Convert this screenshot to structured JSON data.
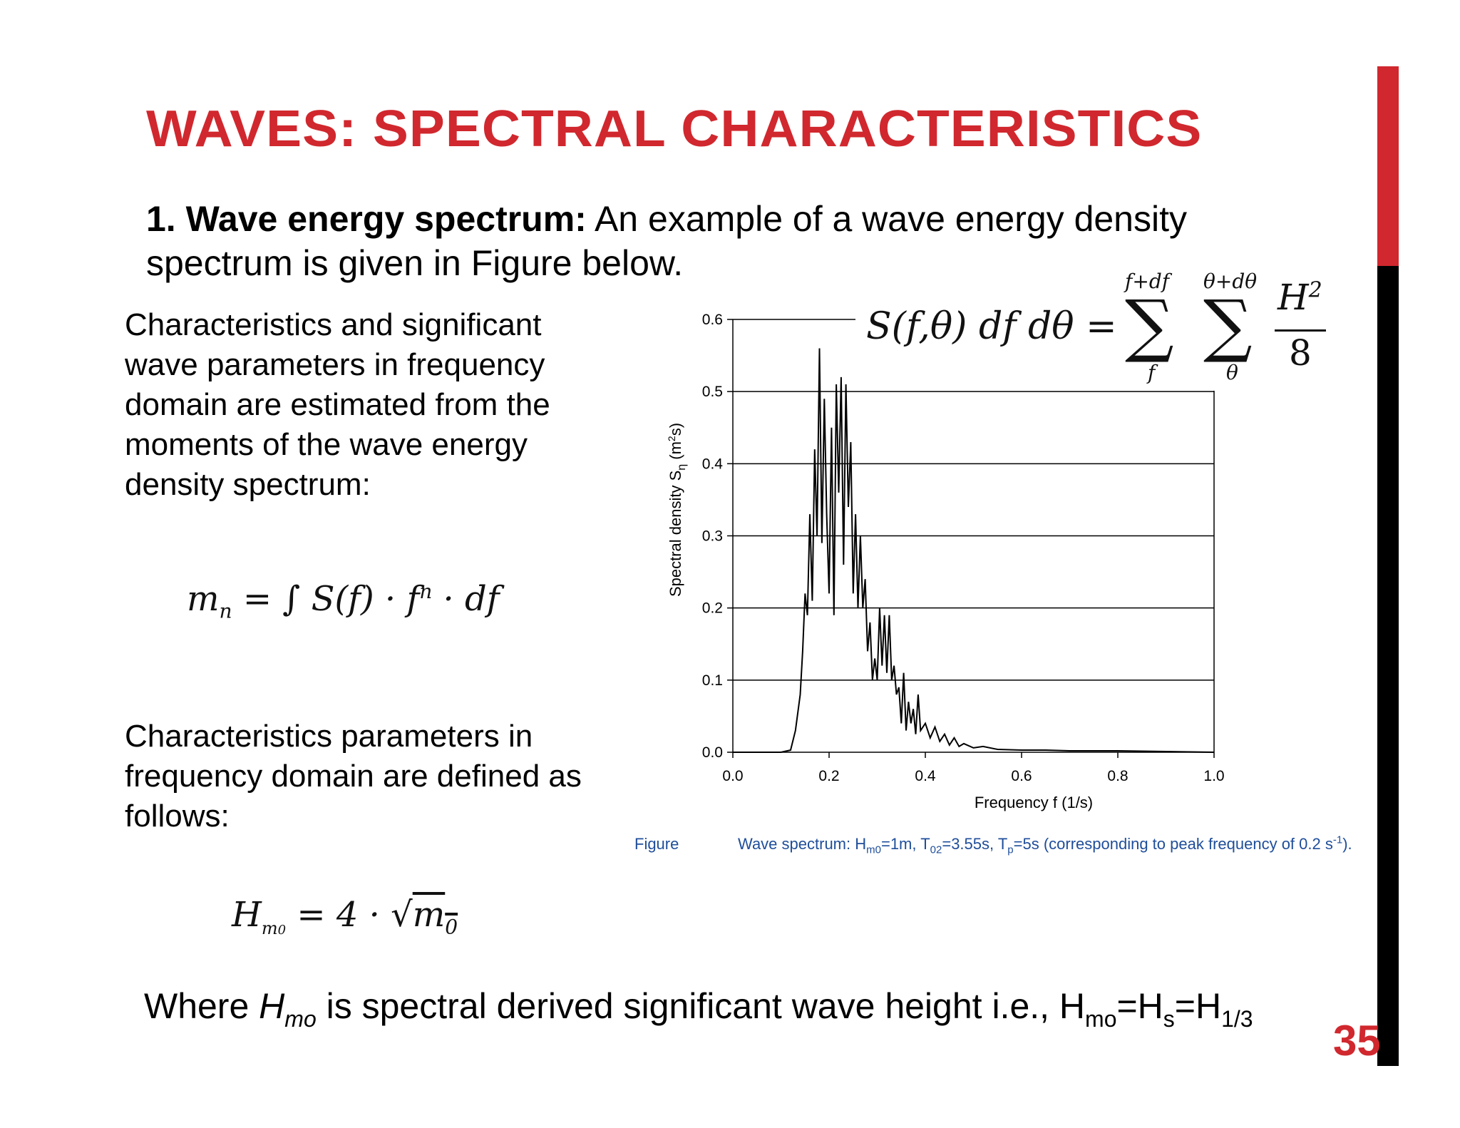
{
  "slide": {
    "title": "WAVES: SPECTRAL CHARACTERISTICS",
    "intro_bold": "1. Wave energy spectrum:",
    "intro_text": " An example of a wave energy density spectrum is given in Figure below.",
    "para1": "Characteristics and significant wave parameters in frequency domain are estimated from the moments of the wave energy density spectrum:",
    "para2": "Characteristics parameters in frequency domain are defined as follows:",
    "formula_moment": {
      "lhs": "m",
      "lhs_sub": "n",
      "rhs": "= ∫ S(f) · f",
      "rhs_sup": "n",
      "tail": " · df"
    },
    "formula_hm0": {
      "lhs": "H",
      "lhs_sub": "m",
      "lhs_subsub": "0",
      "rhs": "= 4 · √",
      "rad": "m",
      "rad_sub": "0"
    },
    "formula_spectrum": {
      "lhs": "S(f,θ) df dθ =",
      "sum1_top": "f+df",
      "sum1_bot": "f",
      "sum2_top": "θ+dθ",
      "sum2_bot": "θ",
      "num": "H",
      "num_sup": "2",
      "den": "8",
      "sigma": "∑"
    },
    "footer": {
      "pre": "Where ",
      "h": "H",
      "h_sub": "mo",
      "mid": " is spectral derived significant wave height i.e., H",
      "s1": "mo",
      "eq1": "=H",
      "s2": "s",
      "eq2": "=H",
      "s3": "1/3"
    },
    "page_number": "35",
    "caption": {
      "label": "Figure",
      "text_a": "Wave spectrum: H",
      "sub_a": "m0",
      "text_b": "=1m, T",
      "sub_b": "02",
      "text_c": "=3.55s, T",
      "sub_c": "p",
      "text_d": "=5s (corresponding to peak frequency of 0.2 s",
      "sup_d": "-1",
      "text_e": ")."
    },
    "colors": {
      "accent": "#d0282e",
      "caption": "#1f4e9a"
    }
  },
  "chart_data": {
    "type": "line",
    "xlabel": "Frequency f (1/s)",
    "ylabel": "Spectral density S",
    "ylabel_sub": "η",
    "ylabel_unit": " (m",
    "ylabel_unit_sup": "2",
    "ylabel_unit_end": "s)",
    "xlim": [
      0.0,
      1.0
    ],
    "ylim": [
      0.0,
      0.6
    ],
    "xticks": [
      "0.0",
      "0.2",
      "0.4",
      "0.6",
      "0.8",
      "1.0"
    ],
    "yticks": [
      "0.0",
      "0.1",
      "0.2",
      "0.3",
      "0.4",
      "0.5",
      "0.6"
    ],
    "grid": true,
    "series": [
      {
        "x": [
          0.0,
          0.1,
          0.12,
          0.13,
          0.14,
          0.145,
          0.15,
          0.155,
          0.16,
          0.165,
          0.17,
          0.175,
          0.18,
          0.185,
          0.19,
          0.195,
          0.2,
          0.205,
          0.21,
          0.215,
          0.22,
          0.225,
          0.23,
          0.235,
          0.24,
          0.245,
          0.25,
          0.255,
          0.26,
          0.265,
          0.27,
          0.275,
          0.28,
          0.285,
          0.29,
          0.295,
          0.3,
          0.305,
          0.31,
          0.315,
          0.32,
          0.325,
          0.33,
          0.335,
          0.34,
          0.345,
          0.35,
          0.355,
          0.36,
          0.365,
          0.37,
          0.375,
          0.38,
          0.385,
          0.39,
          0.4,
          0.41,
          0.42,
          0.43,
          0.44,
          0.45,
          0.46,
          0.47,
          0.48,
          0.5,
          0.52,
          0.55,
          0.6,
          0.65,
          0.7,
          0.8,
          0.9,
          1.0
        ],
        "y": [
          0.0,
          0.0,
          0.003,
          0.03,
          0.08,
          0.14,
          0.22,
          0.19,
          0.33,
          0.21,
          0.42,
          0.3,
          0.56,
          0.29,
          0.49,
          0.33,
          0.22,
          0.45,
          0.19,
          0.51,
          0.36,
          0.52,
          0.26,
          0.51,
          0.34,
          0.43,
          0.22,
          0.33,
          0.2,
          0.3,
          0.2,
          0.24,
          0.14,
          0.18,
          0.1,
          0.13,
          0.1,
          0.2,
          0.12,
          0.19,
          0.11,
          0.19,
          0.1,
          0.12,
          0.08,
          0.09,
          0.04,
          0.11,
          0.03,
          0.07,
          0.04,
          0.06,
          0.025,
          0.08,
          0.03,
          0.04,
          0.02,
          0.035,
          0.015,
          0.025,
          0.01,
          0.02,
          0.008,
          0.012,
          0.006,
          0.008,
          0.004,
          0.003,
          0.003,
          0.002,
          0.002,
          0.001,
          0.0
        ]
      }
    ]
  }
}
